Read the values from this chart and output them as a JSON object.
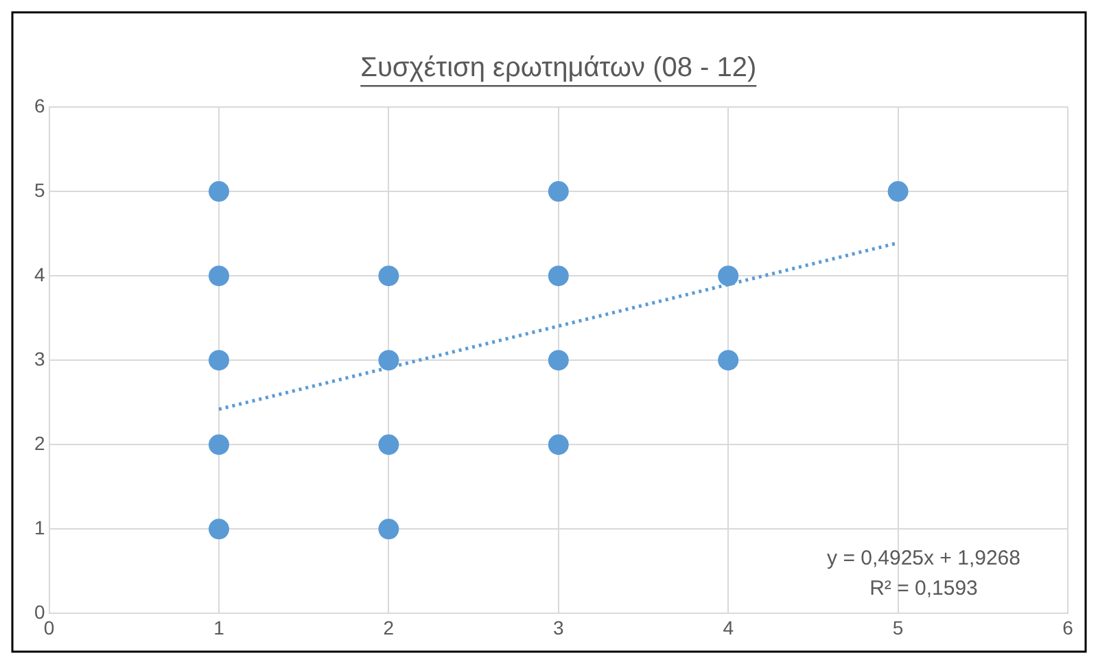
{
  "chart_data": {
    "type": "scatter",
    "title": "Συσχέτιση ερωτημάτων (08 - 12)",
    "series": [
      {
        "color": "#5b9bd5",
        "x": [
          1,
          1,
          1,
          1,
          1,
          2,
          2,
          2,
          2,
          3,
          3,
          3,
          3,
          4,
          4,
          5
        ],
        "values": [
          1,
          2,
          3,
          4,
          5,
          1,
          2,
          3,
          4,
          2,
          3,
          4,
          5,
          3,
          4,
          5
        ],
        "marker": "circle"
      },
      {
        "type": "line",
        "color": "#5b9bd5",
        "x": [
          1,
          5
        ],
        "values": [
          2.42,
          4.39
        ],
        "marker": "none",
        "line_style": "dotted"
      }
    ],
    "xlim": [
      0,
      6
    ],
    "xticks": [
      0,
      1,
      2,
      3,
      4,
      5,
      6
    ],
    "ylim": [
      0,
      6
    ],
    "yticks": [
      0,
      1,
      2,
      3,
      4,
      5,
      6
    ],
    "grid": true,
    "legend": false,
    "annotations": [
      "y = 0,4925x + 1,9268",
      "R² = 0,1593"
    ]
  }
}
